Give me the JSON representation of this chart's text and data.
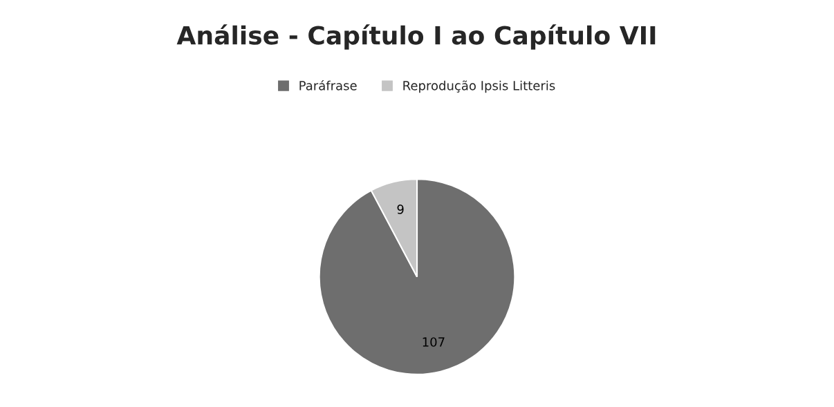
{
  "chart_data": {
    "type": "pie",
    "title": "Análise - Capítulo I ao Capítulo VII",
    "categories": [
      "Paráfrase",
      "Reprodução Ipsis Litteris"
    ],
    "values": [
      107,
      9
    ],
    "colors": [
      "#6e6e6e",
      "#c4c4c4"
    ],
    "data_labels": true,
    "legend": "top"
  }
}
